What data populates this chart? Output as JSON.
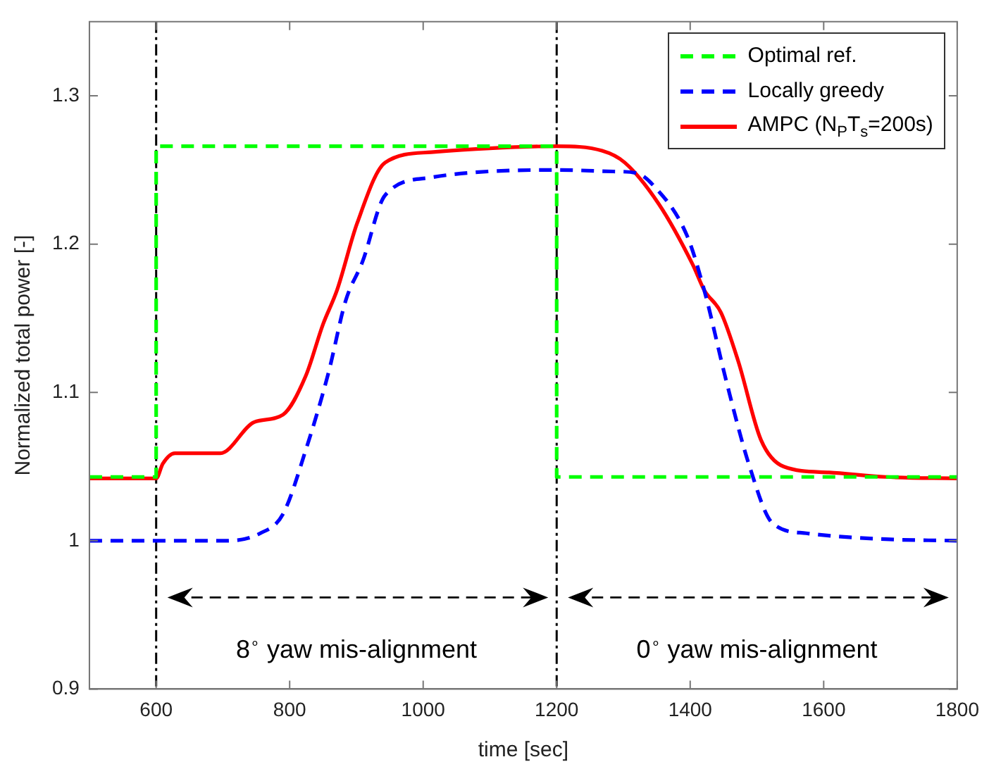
{
  "chart_data": {
    "type": "line",
    "xlabel": "time [sec]",
    "ylabel": "Normalized total power [-]",
    "xlim": [
      500,
      1800
    ],
    "xticks": [
      600,
      800,
      1000,
      1200,
      1400,
      1600,
      1800
    ],
    "ylim": [
      0.9,
      1.35
    ],
    "yticks": [
      0.9,
      1,
      1.1,
      1.2,
      1.3
    ],
    "grid": false,
    "legend": "top right",
    "marker": "none",
    "series": [
      {
        "name": "Optimal ref.",
        "color": "#00ff00",
        "line_style": "dashed",
        "x": [
          500,
          600,
          600,
          1200,
          1200,
          1800
        ],
        "values": [
          1.043,
          1.043,
          1.266,
          1.266,
          1.043,
          1.043
        ]
      },
      {
        "name": "Locally greedy",
        "color": "#0000ff",
        "line_style": "dashed",
        "x": [
          500,
          600,
          705,
          756,
          790,
          824,
          858,
          884,
          909,
          943,
          1012,
          1097,
          1200,
          1285,
          1319,
          1344,
          1395,
          1421,
          1455,
          1489,
          1523,
          1574,
          1693,
          1800
        ],
        "values": [
          1.0,
          1.0,
          1.0,
          1.005,
          1.018,
          1.061,
          1.113,
          1.162,
          1.188,
          1.233,
          1.245,
          1.249,
          1.25,
          1.249,
          1.248,
          1.24,
          1.206,
          1.169,
          1.106,
          1.05,
          1.012,
          1.005,
          1.001,
          1.0
        ]
      },
      {
        "name": "AMPC (N$_{P}$T$_{s}$=200s)",
        "color": "#ff0000",
        "line_style": "solid",
        "x": [
          500,
          600,
          610,
          628,
          696,
          747,
          790,
          824,
          850,
          871,
          901,
          943,
          1012,
          1200,
          1268,
          1302,
          1353,
          1404,
          1421,
          1446,
          1472,
          1506,
          1540,
          1608,
          1693,
          1800
        ],
        "values": [
          1.042,
          1.042,
          1.052,
          1.059,
          1.059,
          1.08,
          1.085,
          1.111,
          1.146,
          1.169,
          1.214,
          1.255,
          1.262,
          1.266,
          1.263,
          1.255,
          1.227,
          1.186,
          1.169,
          1.154,
          1.121,
          1.068,
          1.05,
          1.046,
          1.043,
          1.042
        ]
      }
    ],
    "ref_lines": [
      {
        "axis": "x",
        "value": 600,
        "color": "#000000",
        "line_style": "dashed"
      },
      {
        "axis": "x",
        "value": 1200,
        "color": "#000000",
        "line_style": "dashed"
      }
    ],
    "annotations": [
      "8$^{∘}$ yaw mis-alignment",
      "0$^{∘}$ yaw mis-alignment"
    ]
  }
}
